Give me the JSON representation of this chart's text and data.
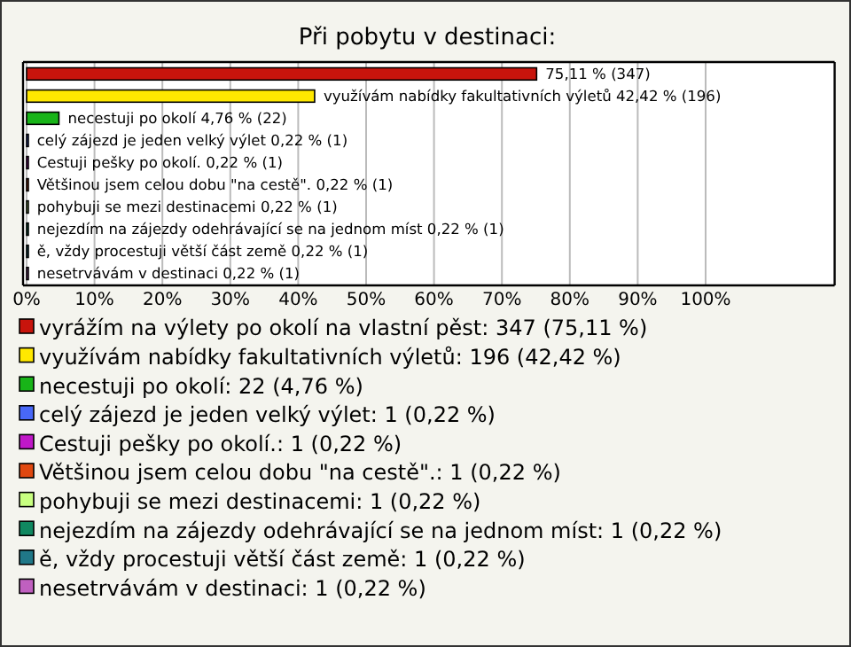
{
  "chart_data": {
    "type": "bar",
    "orientation": "horizontal",
    "stacked": true,
    "title": "Při pobytu v destinaci:",
    "categories": [
      null,
      null,
      null,
      null,
      null,
      null,
      null,
      null,
      null,
      null
    ],
    "series": [
      {
        "name": "vyrážím na výlety po okolí na vlastní pěst: 347 (75,11 %)",
        "color": "#c8140c",
        "values": [
          75.11,
          null,
          null,
          null,
          null,
          null,
          null,
          null,
          null,
          null
        ],
        "value_labels": [
          "75,11 % (347)",
          null,
          null,
          null,
          null,
          null,
          null,
          null,
          null,
          null
        ]
      },
      {
        "name": "využívám nabídky fakultativních výletů: 196 (42,42 %)",
        "color": "#ffe800",
        "values": [
          null,
          42.42,
          null,
          null,
          null,
          null,
          null,
          null,
          null,
          null
        ],
        "value_labels": [
          null,
          "využívám nabídky fakultativních výletů 42,42 % (196)",
          null,
          null,
          null,
          null,
          null,
          null,
          null,
          null
        ]
      },
      {
        "name": "necestuji po okolí: 22 (4,76 %)",
        "color": "#18b418",
        "values": [
          null,
          null,
          4.76,
          null,
          null,
          null,
          null,
          null,
          null,
          null
        ],
        "value_labels": [
          null,
          null,
          "necestuji po okolí 4,76 % (22)",
          null,
          null,
          null,
          null,
          null,
          null,
          null
        ]
      },
      {
        "name": "celý zájezd je jeden velký výlet: 1 (0,22 %)",
        "color": "#4868f8",
        "values": [
          null,
          null,
          null,
          0.22,
          null,
          null,
          null,
          null,
          null,
          null
        ],
        "value_labels": [
          null,
          null,
          null,
          "celý zájezd je jeden velký výlet 0,22 % (1)",
          null,
          null,
          null,
          null,
          null,
          null
        ]
      },
      {
        "name": "Cestuji pešky po okolí.: 1 (0,22 %)",
        "color": "#c018c8",
        "values": [
          null,
          null,
          null,
          null,
          0.22,
          null,
          null,
          null,
          null,
          null
        ],
        "value_labels": [
          null,
          null,
          null,
          null,
          "Cestuji pešky po okolí. 0,22 % (1)",
          null,
          null,
          null,
          null,
          null
        ]
      },
      {
        "name": "Většinou jsem celou dobu \"na cestě\".: 1 (0,22 %)",
        "color": "#e04810",
        "values": [
          null,
          null,
          null,
          null,
          null,
          0.22,
          null,
          null,
          null,
          null
        ],
        "value_labels": [
          null,
          null,
          null,
          null,
          null,
          "Většinou jsem celou dobu \"na cestě\". 0,22 % (1)",
          null,
          null,
          null,
          null
        ]
      },
      {
        "name": "pohybuji se mezi destinacemi: 1 (0,22 %)",
        "color": "#c8ff80",
        "values": [
          null,
          null,
          null,
          null,
          null,
          null,
          0.22,
          null,
          null,
          null
        ],
        "value_labels": [
          null,
          null,
          null,
          null,
          null,
          null,
          "pohybuji se mezi destinacemi 0,22 % (1)",
          null,
          null,
          null
        ]
      },
      {
        "name": "nejezdím na zájezdy odehrávající se na jednom míst: 1 (0,22 %)",
        "color": "#108860",
        "values": [
          null,
          null,
          null,
          null,
          null,
          null,
          null,
          0.22,
          null,
          null
        ],
        "value_labels": [
          null,
          null,
          null,
          null,
          null,
          null,
          null,
          "nejezdím na zájezdy odehrávající se na jednom míst 0,22 % (1)",
          null,
          null
        ]
      },
      {
        "name": "ě, vždy procestuji větší část země: 1 (0,22 %)",
        "color": "#207888",
        "values": [
          null,
          null,
          null,
          null,
          null,
          null,
          null,
          null,
          0.22,
          null
        ],
        "value_labels": [
          null,
          null,
          null,
          null,
          null,
          null,
          null,
          null,
          "ě, vždy procestuji větší část země 0,22 % (1)",
          null
        ]
      },
      {
        "name": "nesetrvávám v destinaci: 1 (0,22 %)",
        "color": "#c060c0",
        "values": [
          null,
          null,
          null,
          null,
          null,
          null,
          null,
          null,
          null,
          0.22
        ],
        "value_labels": [
          null,
          null,
          null,
          null,
          null,
          null,
          null,
          null,
          null,
          "nesetrvávám v destinaci 0,22 % (1)"
        ]
      }
    ],
    "xlim": [
      0,
      119
    ],
    "xticks": [
      {
        "value": 0,
        "label": "0%"
      },
      {
        "value": 10,
        "label": "10%"
      },
      {
        "value": 20,
        "label": "20%"
      },
      {
        "value": 30,
        "label": "30%"
      },
      {
        "value": 40,
        "label": "40%"
      },
      {
        "value": 50,
        "label": "50%"
      },
      {
        "value": 60,
        "label": "60%"
      },
      {
        "value": 70,
        "label": "70%"
      },
      {
        "value": 80,
        "label": "80%"
      },
      {
        "value": 90,
        "label": "90%"
      },
      {
        "value": 100,
        "label": "100%"
      }
    ],
    "grid": "x",
    "tick_labels": "x",
    "legend": "bottom"
  }
}
